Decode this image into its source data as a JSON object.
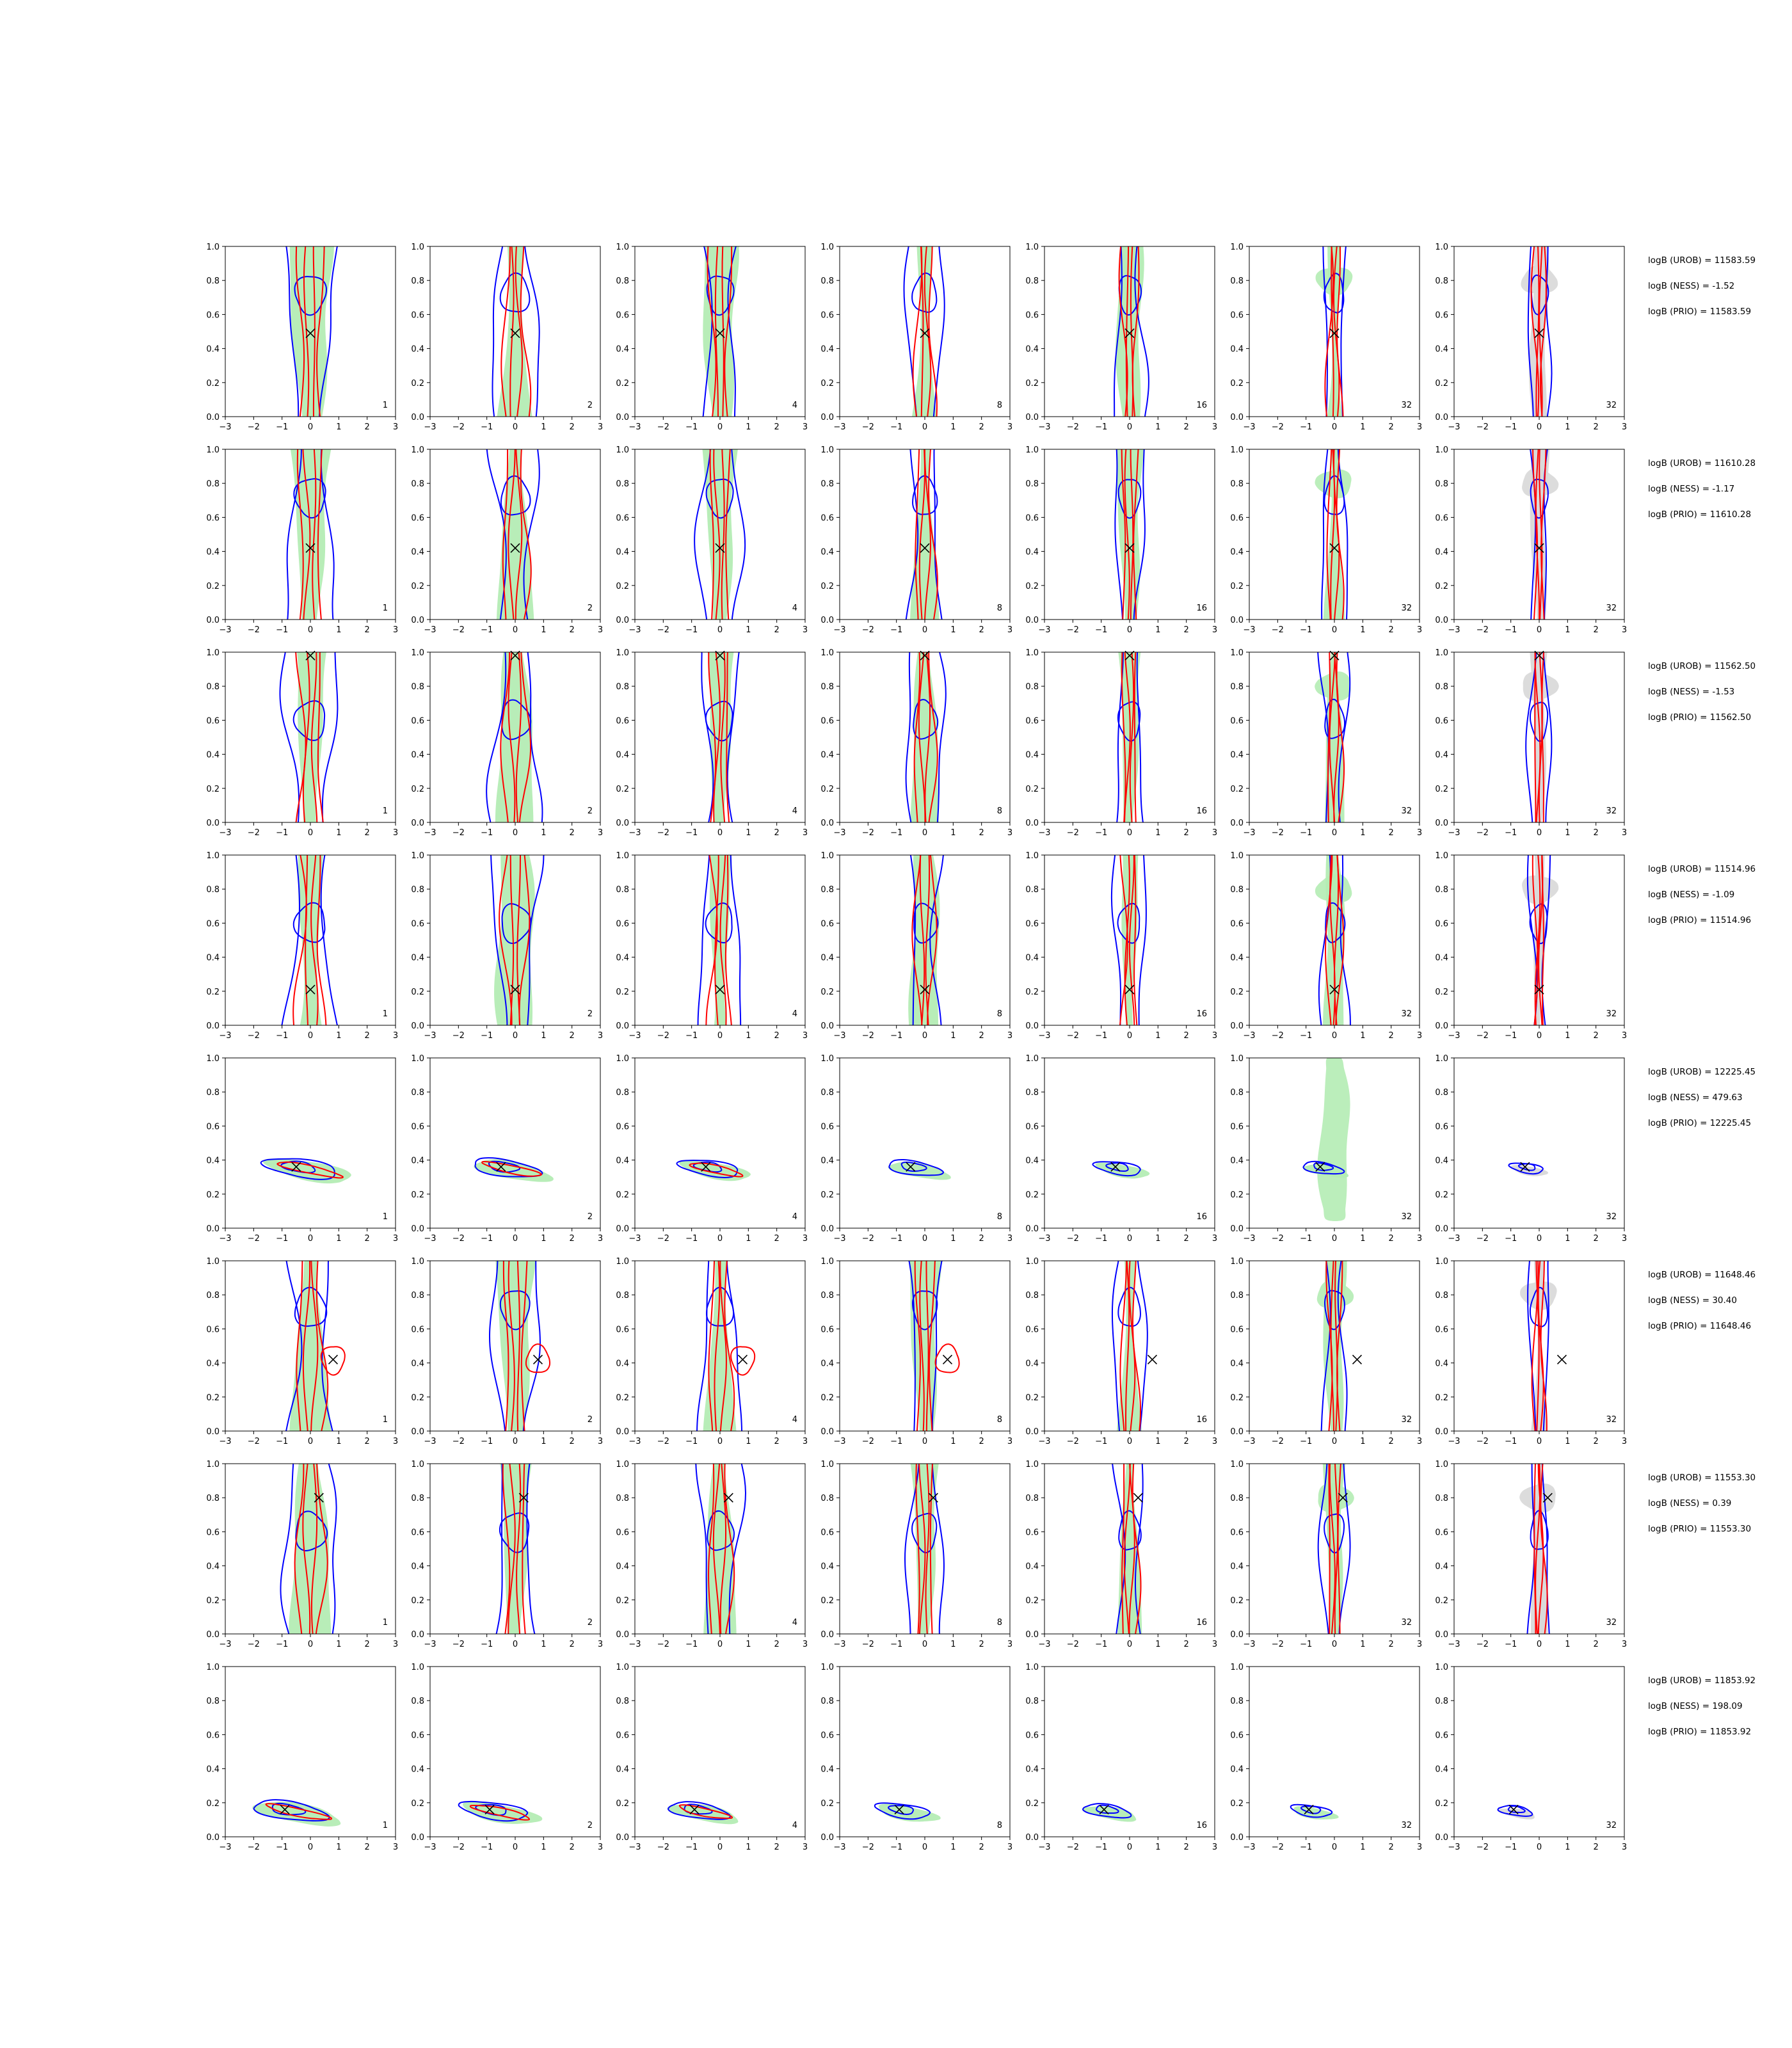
{
  "chart_data": {
    "type": "contour-grid",
    "rows": 8,
    "cols": 7,
    "xlim": [
      -3,
      3
    ],
    "ylim": [
      0.0,
      1.0
    ],
    "xticks": [
      "−3",
      "−2",
      "−1",
      "0",
      "1",
      "2",
      "3"
    ],
    "yticks": [
      "0.0",
      "0.2",
      "0.4",
      "0.6",
      "0.8",
      "1.0"
    ],
    "column_labels": [
      "1",
      "2",
      "4",
      "8",
      "16",
      "32",
      "32"
    ],
    "last_column_fill": "gray",
    "colors": {
      "fill_green": "#b4ecb4",
      "fill_gray": "#d8d8d8",
      "blue": "#0000ff",
      "red": "#ff0000",
      "marker": "#000000",
      "frame": "#000000"
    },
    "rows_data": [
      {
        "truth": [
          0.0,
          0.49
        ],
        "kind": "vertical",
        "stats": [
          "logB (UROB) = 11583.59",
          "logB (NESS) = -1.52",
          "logB (PRIO) = 11583.59"
        ]
      },
      {
        "truth": [
          0.0,
          0.42
        ],
        "kind": "vertical",
        "stats": [
          "logB (UROB) = 11610.28",
          "logB (NESS) = -1.17",
          "logB (PRIO) = 11610.28"
        ]
      },
      {
        "truth": [
          0.0,
          0.98
        ],
        "kind": "vertical",
        "stats": [
          "logB (UROB) = 11562.50",
          "logB (NESS) = -1.53",
          "logB (PRIO) = 11562.50"
        ]
      },
      {
        "truth": [
          0.0,
          0.21
        ],
        "kind": "vertical",
        "stats": [
          "logB (UROB) = 11514.96",
          "logB (NESS) = -1.09",
          "logB (PRIO) = 11514.96"
        ]
      },
      {
        "truth": [
          -0.5,
          0.36
        ],
        "kind": "tilted",
        "stats": [
          "logB (UROB) = 12225.45",
          "logB (NESS) = 479.63",
          "logB (PRIO) = 12225.45"
        ]
      },
      {
        "truth": [
          0.8,
          0.42
        ],
        "kind": "vertical",
        "stats": [
          "logB (UROB) = 11648.46",
          "logB (NESS) = 30.40",
          "logB (PRIO) = 11648.46"
        ]
      },
      {
        "truth": [
          0.3,
          0.8
        ],
        "kind": "vertical",
        "stats": [
          "logB (UROB) = 11553.30",
          "logB (NESS) = 0.39",
          "logB (PRIO) = 11553.30"
        ]
      },
      {
        "truth": [
          -0.9,
          0.16
        ],
        "kind": "tilted",
        "stats": [
          "logB (UROB) = 11853.92",
          "logB (NESS) = 198.09",
          "logB (PRIO) = 11853.92"
        ]
      }
    ]
  }
}
